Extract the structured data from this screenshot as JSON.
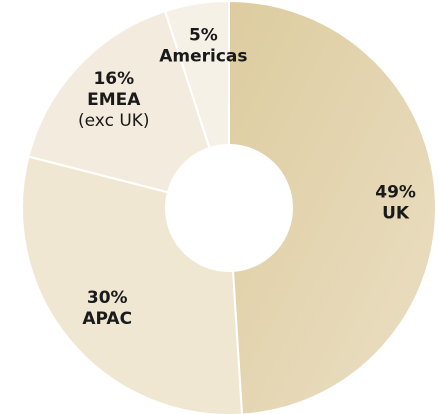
{
  "chart_data": {
    "type": "pie",
    "variant": "donut",
    "title": "",
    "slices": [
      {
        "label": "UK",
        "value": 49,
        "value_label": "49%",
        "note": "",
        "color": "#e4d6b2"
      },
      {
        "label": "APAC",
        "value": 30,
        "value_label": "30%",
        "note": "",
        "color": "#f0e7d3"
      },
      {
        "label": "EMEA",
        "value": 16,
        "value_label": "16%",
        "note": "(exc UK)",
        "color": "#f3ecde"
      },
      {
        "label": "Americas",
        "value": 5,
        "value_label": "5%",
        "note": "",
        "color": "#f6f1e7"
      }
    ],
    "start": "12 o'clock",
    "direction": "clockwise",
    "separator_color": "#ffffff",
    "legend": "none"
  }
}
